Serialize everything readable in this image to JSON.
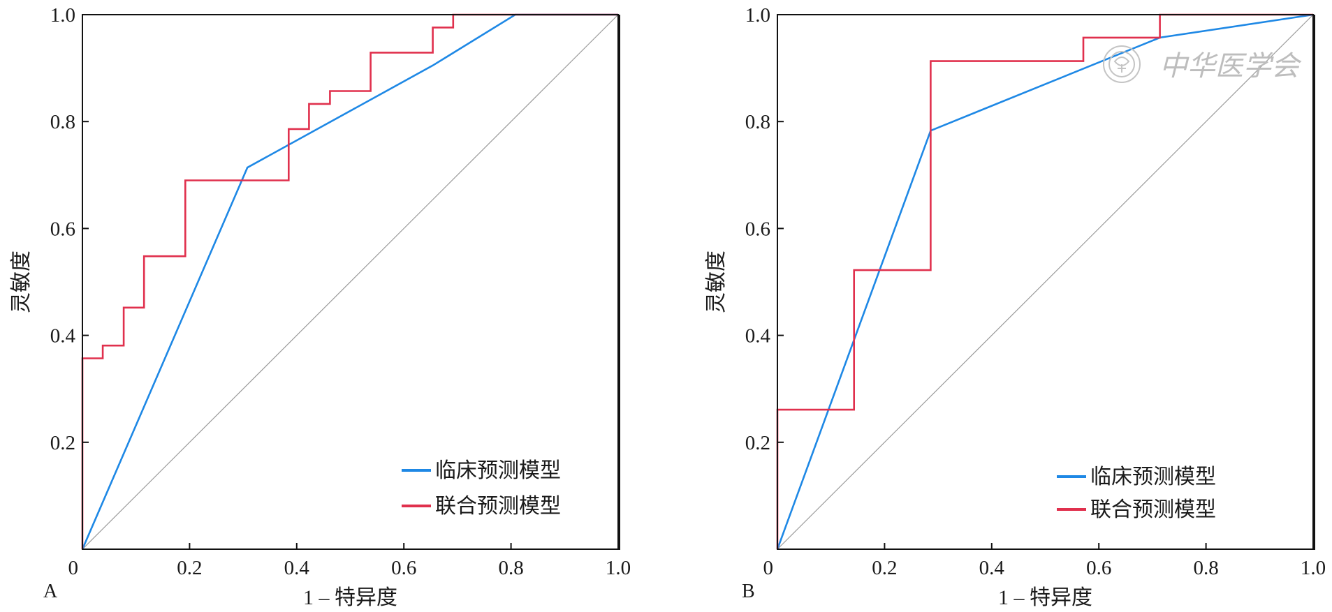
{
  "colors": {
    "clinical": "#1e88e5",
    "combined": "#e0304d",
    "reference": "#9a9a9a",
    "axis": "#111111"
  },
  "watermark": "中华医学会",
  "chart_data": [
    {
      "type": "line",
      "panel_label": "A",
      "xlabel": "1 – 特异度",
      "ylabel": "灵敏度",
      "xlim": [
        0,
        1
      ],
      "ylim": [
        0,
        1
      ],
      "x_ticks": [
        {
          "value": 0,
          "label": "0"
        },
        {
          "value": 0.2,
          "label": "0.2"
        },
        {
          "value": 0.4,
          "label": "0.4"
        },
        {
          "value": 0.6,
          "label": "0.6"
        },
        {
          "value": 0.8,
          "label": "0.8"
        },
        {
          "value": 1.0,
          "label": "1.0"
        }
      ],
      "y_ticks": [
        {
          "value": 0.2,
          "label": "0.2"
        },
        {
          "value": 0.4,
          "label": "0.4"
        },
        {
          "value": 0.6,
          "label": "0.6"
        },
        {
          "value": 0.8,
          "label": "0.8"
        },
        {
          "value": 1.0,
          "label": "1.0"
        }
      ],
      "legend_position": "bottom-right",
      "reference_line": [
        [
          0,
          0
        ],
        [
          1,
          1
        ]
      ],
      "series": [
        {
          "name": "临床预测模型",
          "color_key": "clinical",
          "points": [
            [
              0,
              0
            ],
            [
              0.308,
              0.714
            ],
            [
              0.654,
              0.905
            ],
            [
              0.808,
              1.0
            ],
            [
              1.0,
              1.0
            ]
          ]
        },
        {
          "name": "联合预测模型",
          "color_key": "combined",
          "points": [
            [
              0,
              0
            ],
            [
              0,
              0.357
            ],
            [
              0.038,
              0.357
            ],
            [
              0.038,
              0.381
            ],
            [
              0.077,
              0.381
            ],
            [
              0.077,
              0.452
            ],
            [
              0.115,
              0.452
            ],
            [
              0.115,
              0.548
            ],
            [
              0.192,
              0.548
            ],
            [
              0.192,
              0.69
            ],
            [
              0.385,
              0.69
            ],
            [
              0.385,
              0.786
            ],
            [
              0.423,
              0.786
            ],
            [
              0.423,
              0.833
            ],
            [
              0.462,
              0.833
            ],
            [
              0.462,
              0.857
            ],
            [
              0.538,
              0.857
            ],
            [
              0.538,
              0.929
            ],
            [
              0.654,
              0.929
            ],
            [
              0.654,
              0.976
            ],
            [
              0.692,
              0.976
            ],
            [
              0.692,
              1.0
            ],
            [
              1.0,
              1.0
            ]
          ]
        }
      ]
    },
    {
      "type": "line",
      "panel_label": "B",
      "xlabel": "1 – 特异度",
      "ylabel": "灵敏度",
      "xlim": [
        0,
        1
      ],
      "ylim": [
        0,
        1
      ],
      "x_ticks": [
        {
          "value": 0,
          "label": "0"
        },
        {
          "value": 0.2,
          "label": "0.2"
        },
        {
          "value": 0.4,
          "label": "0.4"
        },
        {
          "value": 0.6,
          "label": "0.6"
        },
        {
          "value": 0.8,
          "label": "0.8"
        },
        {
          "value": 1.0,
          "label": "1.0"
        }
      ],
      "y_ticks": [
        {
          "value": 0.2,
          "label": "0.2"
        },
        {
          "value": 0.4,
          "label": "0.4"
        },
        {
          "value": 0.6,
          "label": "0.6"
        },
        {
          "value": 0.8,
          "label": "0.8"
        },
        {
          "value": 1.0,
          "label": "1.0"
        }
      ],
      "legend_position": "bottom-right",
      "reference_line": [
        [
          0,
          0
        ],
        [
          1,
          1
        ]
      ],
      "series": [
        {
          "name": "临床预测模型",
          "color_key": "clinical",
          "points": [
            [
              0,
              0
            ],
            [
              0.286,
              0.783
            ],
            [
              0.714,
              0.957
            ],
            [
              1.0,
              1.0
            ]
          ]
        },
        {
          "name": "联合预测模型",
          "color_key": "combined",
          "points": [
            [
              0,
              0
            ],
            [
              0,
              0.261
            ],
            [
              0.143,
              0.261
            ],
            [
              0.143,
              0.522
            ],
            [
              0.286,
              0.522
            ],
            [
              0.286,
              0.913
            ],
            [
              0.571,
              0.913
            ],
            [
              0.571,
              0.957
            ],
            [
              0.714,
              0.957
            ],
            [
              0.714,
              1.0
            ],
            [
              1.0,
              1.0
            ]
          ]
        }
      ]
    }
  ]
}
